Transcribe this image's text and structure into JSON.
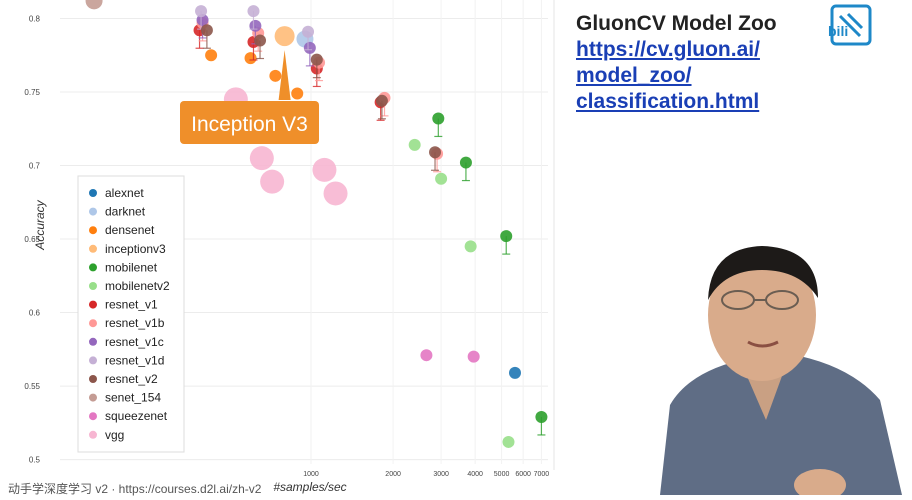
{
  "right": {
    "title": "GluonCV Model Zoo",
    "link_lines": [
      "https://cv.gluon.ai/",
      "model_zoo/",
      "classification.html"
    ]
  },
  "footer": "动手学深度学习 v2 · https://courses.d2l.ai/zh-v2",
  "chart_data": {
    "type": "scatter",
    "xlabel": "#samples/sec",
    "ylabel": "Accuracy",
    "x_scale": "log",
    "xlim": [
      120,
      7400
    ],
    "ylim": [
      0.497,
      0.818
    ],
    "y_ticks": [
      0.5,
      0.55,
      0.6,
      0.65,
      0.7,
      0.75,
      0.8
    ],
    "x_ticks": [
      1000,
      2000,
      3000,
      4000,
      5000,
      6000,
      7000
    ],
    "grid": true,
    "legend_position": "left",
    "annotation": "Inception V3",
    "series": [
      {
        "name": "alexnet",
        "color": "#1f77b4",
        "points": [
          [
            5600,
            0.559
          ]
        ]
      },
      {
        "name": "darknet",
        "color": "#aec7e8",
        "points": [
          [
            950,
            0.786
          ]
        ]
      },
      {
        "name": "densenet",
        "color": "#ff7f0e",
        "points": [
          [
            430,
            0.775
          ],
          [
            600,
            0.773
          ],
          [
            740,
            0.761
          ],
          [
            890,
            0.749
          ]
        ]
      },
      {
        "name": "inceptionv3",
        "color": "#ffbb78",
        "points": [
          [
            800,
            0.788
          ]
        ]
      },
      {
        "name": "mobilenet",
        "color": "#2ca02c",
        "points": [
          [
            2930,
            0.732
          ],
          [
            3700,
            0.702
          ],
          [
            5200,
            0.652
          ],
          [
            7000,
            0.529
          ]
        ]
      },
      {
        "name": "mobilenetv2",
        "color": "#98df8a",
        "points": [
          [
            2400,
            0.714
          ],
          [
            3000,
            0.691
          ],
          [
            3850,
            0.645
          ],
          [
            5300,
            0.512
          ]
        ]
      },
      {
        "name": "resnet_v1",
        "color": "#d62728",
        "points": [
          [
            390,
            0.792
          ],
          [
            615,
            0.784
          ],
          [
            1050,
            0.766
          ],
          [
            1800,
            0.743
          ]
        ]
      },
      {
        "name": "resnet_v1b",
        "color": "#ff9896",
        "points": [
          [
            400,
            0.797
          ],
          [
            640,
            0.79
          ],
          [
            1070,
            0.77
          ],
          [
            1860,
            0.746
          ],
          [
            2900,
            0.708
          ]
        ]
      },
      {
        "name": "resnet_v1c",
        "color": "#9467bd",
        "points": [
          [
            400,
            0.799
          ],
          [
            625,
            0.795
          ],
          [
            990,
            0.78
          ]
        ]
      },
      {
        "name": "resnet_v1d",
        "color": "#c5b0d5",
        "points": [
          [
            395,
            0.805
          ],
          [
            615,
            0.805
          ],
          [
            975,
            0.791
          ]
        ]
      },
      {
        "name": "resnet_v2",
        "color": "#8c564b",
        "points": [
          [
            415,
            0.792
          ],
          [
            650,
            0.785
          ],
          [
            1050,
            0.772
          ],
          [
            1820,
            0.744
          ],
          [
            2850,
            0.709
          ]
        ]
      },
      {
        "name": "senet_154",
        "color": "#c49c94",
        "points": [
          [
            160,
            0.812
          ]
        ]
      },
      {
        "name": "squeezenet",
        "color": "#e377c2",
        "points": [
          [
            2650,
            0.571
          ],
          [
            3950,
            0.57
          ]
        ]
      },
      {
        "name": "vgg",
        "color": "#f7b6d2",
        "points": [
          [
            530,
            0.745
          ],
          [
            660,
            0.705
          ],
          [
            720,
            0.689
          ],
          [
            1120,
            0.697
          ],
          [
            1230,
            0.681
          ]
        ]
      }
    ]
  }
}
